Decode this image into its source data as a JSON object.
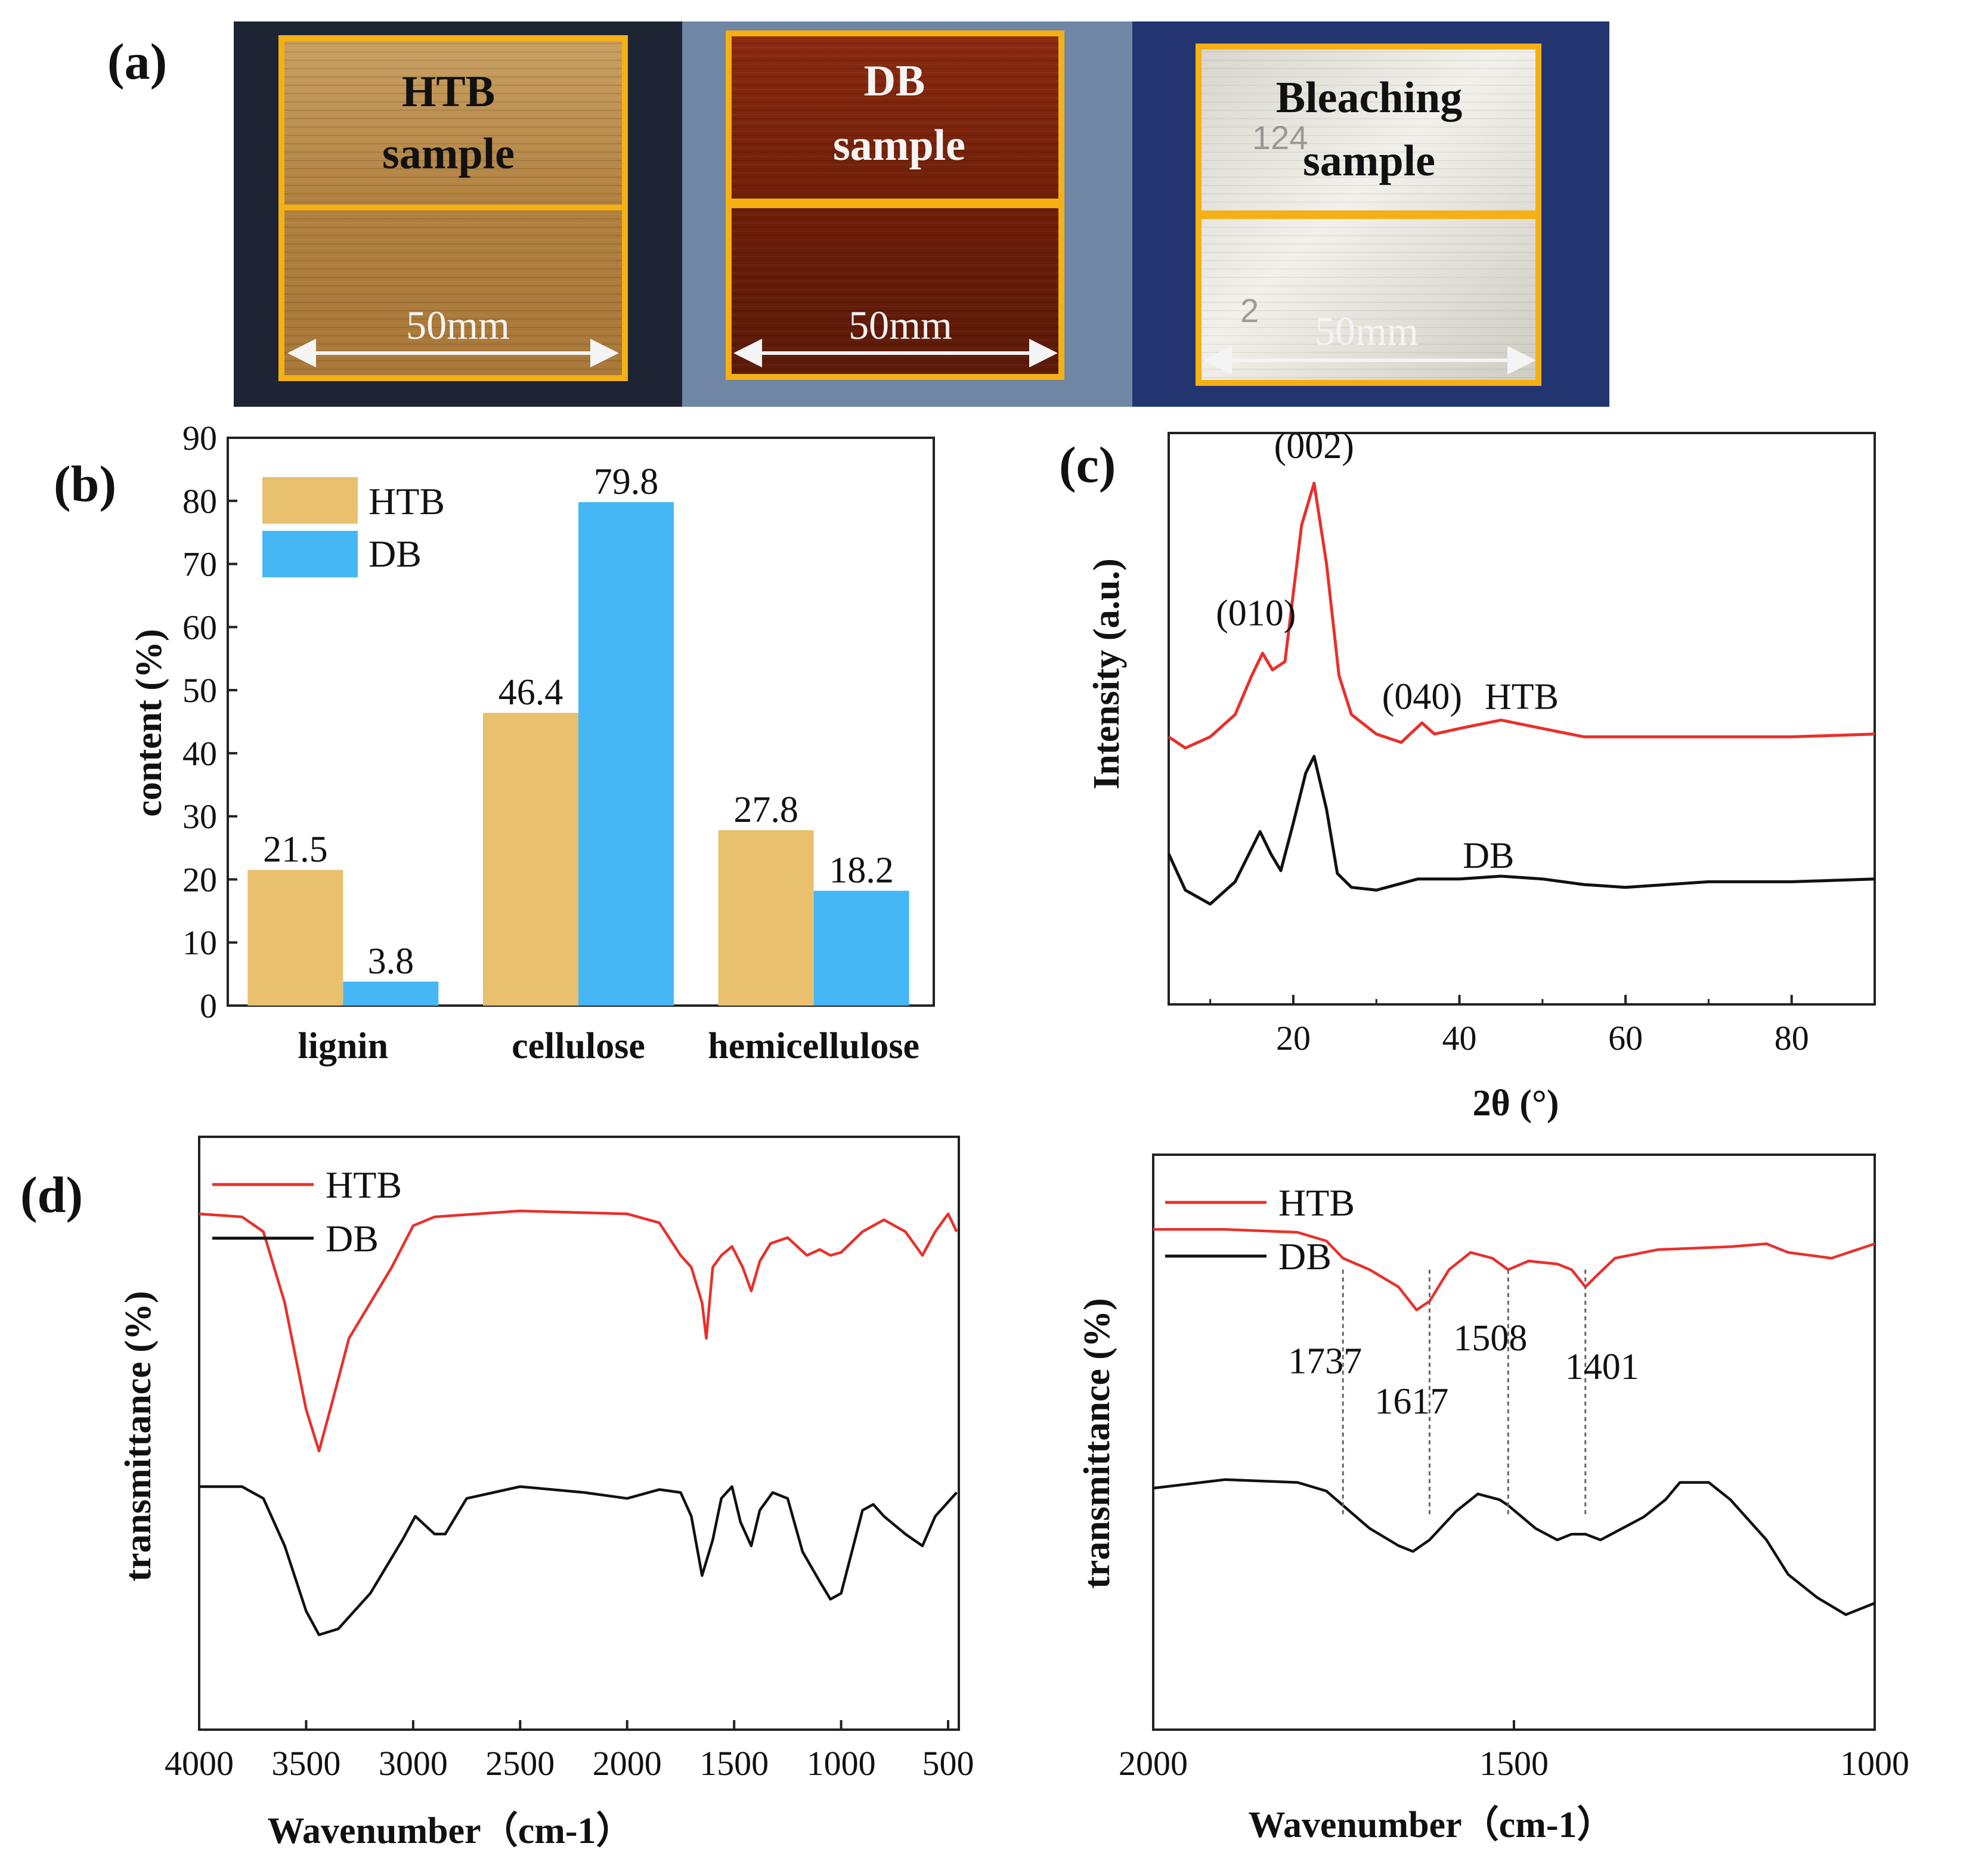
{
  "panel_labels": {
    "a": "(a)",
    "b": "(b)",
    "c": "(c)",
    "d": "(d)"
  },
  "colors": {
    "htb_bar": "#E8C06E",
    "db_bar": "#45B7F5",
    "htb_line": "#E8302B",
    "db_line": "#111111",
    "frame": "#F5B014"
  },
  "photos": {
    "htb": {
      "line1": "HTB",
      "line2": "sample",
      "dimension": "50mm"
    },
    "db": {
      "line1": "DB",
      "line2": "sample",
      "dimension": "50mm"
    },
    "bleach": {
      "line1": "Bleaching",
      "line2": "sample",
      "dimension": "50mm",
      "marks": [
        "124",
        "2"
      ]
    }
  },
  "chart_data": [
    {
      "id": "b",
      "type": "bar",
      "categories": [
        "lignin",
        "cellulose",
        "hemicellulose"
      ],
      "series": [
        {
          "name": "HTB",
          "values": [
            21.5,
            46.4,
            27.8
          ]
        },
        {
          "name": "DB",
          "values": [
            3.8,
            79.8,
            18.2
          ]
        }
      ],
      "value_labels": [
        [
          "21.5",
          "46.4",
          "27.8"
        ],
        [
          "3.8",
          "79.8",
          "18.2"
        ]
      ],
      "ylabel": "content (%)",
      "ylim": [
        0,
        90
      ],
      "yticks": [
        "0",
        "10",
        "20",
        "30",
        "40",
        "50",
        "60",
        "70",
        "80",
        "90"
      ],
      "legend": [
        "HTB",
        "DB"
      ]
    },
    {
      "id": "c",
      "type": "line",
      "title": "",
      "xlabel": "2θ (°)",
      "ylabel": "Intensity (a.u.)",
      "xlim": [
        5,
        90
      ],
      "xticks": [
        "20",
        "40",
        "60",
        "80"
      ],
      "series": [
        {
          "name": "HTB",
          "points": [
            [
              5,
              0.96
            ],
            [
              7,
              0.92
            ],
            [
              10,
              0.96
            ],
            [
              13,
              1.04
            ],
            [
              15,
              1.18
            ],
            [
              16.3,
              1.26
            ],
            [
              17.5,
              1.2
            ],
            [
              19,
              1.23
            ],
            [
              21,
              1.72
            ],
            [
              22.5,
              1.87
            ],
            [
              24,
              1.58
            ],
            [
              25.5,
              1.18
            ],
            [
              27,
              1.04
            ],
            [
              30,
              0.97
            ],
            [
              33,
              0.94
            ],
            [
              35.5,
              1.01
            ],
            [
              37,
              0.97
            ],
            [
              40,
              0.99
            ],
            [
              45,
              1.02
            ],
            [
              50,
              0.99
            ],
            [
              55,
              0.96
            ],
            [
              60,
              0.96
            ],
            [
              70,
              0.96
            ],
            [
              80,
              0.96
            ],
            [
              90,
              0.97
            ]
          ]
        },
        {
          "name": "DB",
          "points": [
            [
              5,
              0.54
            ],
            [
              7,
              0.41
            ],
            [
              10,
              0.36
            ],
            [
              13,
              0.44
            ],
            [
              15,
              0.56
            ],
            [
              16,
              0.62
            ],
            [
              17.3,
              0.54
            ],
            [
              18.5,
              0.48
            ],
            [
              20,
              0.65
            ],
            [
              21.5,
              0.83
            ],
            [
              22.5,
              0.89
            ],
            [
              24,
              0.7
            ],
            [
              25.3,
              0.47
            ],
            [
              27,
              0.42
            ],
            [
              30,
              0.41
            ],
            [
              35,
              0.45
            ],
            [
              40,
              0.45
            ],
            [
              45,
              0.46
            ],
            [
              50,
              0.45
            ],
            [
              55,
              0.43
            ],
            [
              60,
              0.42
            ],
            [
              70,
              0.44
            ],
            [
              80,
              0.44
            ],
            [
              90,
              0.45
            ]
          ]
        }
      ],
      "peak_annotations": [
        "(010)",
        "(002)",
        "(040)"
      ],
      "series_labels": [
        "HTB",
        "DB"
      ]
    },
    {
      "id": "d-left",
      "type": "line",
      "xlabel": "Wavenumber（cm-1）",
      "ylabel": "transmittance (%)",
      "xlim": [
        4000,
        450
      ],
      "xticks": [
        "4000",
        "3500",
        "3000",
        "2500",
        "2000",
        "1500",
        "1000",
        "500"
      ],
      "legend": [
        "HTB",
        "DB"
      ],
      "series": [
        {
          "name": "HTB",
          "points": [
            [
              4000,
              0.87
            ],
            [
              3800,
              0.865
            ],
            [
              3700,
              0.84
            ],
            [
              3600,
              0.72
            ],
            [
              3500,
              0.54
            ],
            [
              3440,
              0.47
            ],
            [
              3380,
              0.55
            ],
            [
              3300,
              0.66
            ],
            [
              3200,
              0.72
            ],
            [
              3100,
              0.78
            ],
            [
              3000,
              0.85
            ],
            [
              2900,
              0.865
            ],
            [
              2500,
              0.875
            ],
            [
              2000,
              0.87
            ],
            [
              1850,
              0.855
            ],
            [
              1750,
              0.8
            ],
            [
              1700,
              0.78
            ],
            [
              1650,
              0.72
            ],
            [
              1630,
              0.66
            ],
            [
              1600,
              0.78
            ],
            [
              1560,
              0.8
            ],
            [
              1510,
              0.815
            ],
            [
              1460,
              0.78
            ],
            [
              1420,
              0.74
            ],
            [
              1380,
              0.79
            ],
            [
              1330,
              0.82
            ],
            [
              1250,
              0.83
            ],
            [
              1160,
              0.8
            ],
            [
              1100,
              0.81
            ],
            [
              1050,
              0.8
            ],
            [
              1000,
              0.805
            ],
            [
              900,
              0.84
            ],
            [
              800,
              0.86
            ],
            [
              700,
              0.84
            ],
            [
              620,
              0.8
            ],
            [
              560,
              0.84
            ],
            [
              500,
              0.87
            ],
            [
              460,
              0.84
            ]
          ]
        },
        {
          "name": "DB",
          "points": [
            [
              4000,
              0.41
            ],
            [
              3800,
              0.41
            ],
            [
              3700,
              0.39
            ],
            [
              3600,
              0.31
            ],
            [
              3500,
              0.2
            ],
            [
              3440,
              0.16
            ],
            [
              3350,
              0.17
            ],
            [
              3200,
              0.23
            ],
            [
              3050,
              0.32
            ],
            [
              2990,
              0.36
            ],
            [
              2900,
              0.33
            ],
            [
              2850,
              0.33
            ],
            [
              2750,
              0.39
            ],
            [
              2500,
              0.41
            ],
            [
              2200,
              0.4
            ],
            [
              2000,
              0.39
            ],
            [
              1850,
              0.405
            ],
            [
              1750,
              0.4
            ],
            [
              1700,
              0.36
            ],
            [
              1650,
              0.26
            ],
            [
              1600,
              0.32
            ],
            [
              1560,
              0.39
            ],
            [
              1510,
              0.41
            ],
            [
              1470,
              0.35
            ],
            [
              1420,
              0.31
            ],
            [
              1380,
              0.37
            ],
            [
              1320,
              0.4
            ],
            [
              1250,
              0.39
            ],
            [
              1180,
              0.3
            ],
            [
              1100,
              0.25
            ],
            [
              1050,
              0.22
            ],
            [
              1000,
              0.23
            ],
            [
              950,
              0.3
            ],
            [
              900,
              0.37
            ],
            [
              850,
              0.38
            ],
            [
              800,
              0.36
            ],
            [
              700,
              0.33
            ],
            [
              620,
              0.31
            ],
            [
              560,
              0.36
            ],
            [
              460,
              0.4
            ]
          ]
        }
      ]
    },
    {
      "id": "d-right",
      "type": "line",
      "xlabel": "Wavenumber（cm-1）",
      "ylabel": "transmittance (%)",
      "xlim": [
        2000,
        1000
      ],
      "xticks": [
        "2000",
        "1500",
        "1000"
      ],
      "legend": [
        "HTB",
        "DB"
      ],
      "markers": [
        {
          "x": 1737,
          "label": "1737"
        },
        {
          "x": 1617,
          "label": "1617"
        },
        {
          "x": 1508,
          "label": "1508"
        },
        {
          "x": 1401,
          "label": "1401"
        }
      ],
      "series": [
        {
          "name": "HTB",
          "points": [
            [
              2000,
              0.87
            ],
            [
              1900,
              0.87
            ],
            [
              1800,
              0.865
            ],
            [
              1760,
              0.85
            ],
            [
              1737,
              0.82
            ],
            [
              1700,
              0.8
            ],
            [
              1660,
              0.77
            ],
            [
              1635,
              0.73
            ],
            [
              1617,
              0.745
            ],
            [
              1590,
              0.8
            ],
            [
              1560,
              0.83
            ],
            [
              1530,
              0.82
            ],
            [
              1508,
              0.8
            ],
            [
              1480,
              0.815
            ],
            [
              1440,
              0.81
            ],
            [
              1420,
              0.8
            ],
            [
              1401,
              0.77
            ],
            [
              1385,
              0.79
            ],
            [
              1360,
              0.82
            ],
            [
              1300,
              0.835
            ],
            [
              1200,
              0.84
            ],
            [
              1150,
              0.845
            ],
            [
              1120,
              0.83
            ],
            [
              1060,
              0.82
            ],
            [
              1000,
              0.845
            ]
          ]
        },
        {
          "name": "DB",
          "points": [
            [
              2000,
              0.42
            ],
            [
              1900,
              0.435
            ],
            [
              1800,
              0.43
            ],
            [
              1760,
              0.415
            ],
            [
              1737,
              0.39
            ],
            [
              1700,
              0.35
            ],
            [
              1660,
              0.32
            ],
            [
              1640,
              0.31
            ],
            [
              1617,
              0.33
            ],
            [
              1580,
              0.38
            ],
            [
              1550,
              0.41
            ],
            [
              1520,
              0.4
            ],
            [
              1508,
              0.39
            ],
            [
              1470,
              0.35
            ],
            [
              1440,
              0.33
            ],
            [
              1420,
              0.34
            ],
            [
              1401,
              0.34
            ],
            [
              1380,
              0.33
            ],
            [
              1350,
              0.35
            ],
            [
              1320,
              0.37
            ],
            [
              1290,
              0.4
            ],
            [
              1270,
              0.43
            ],
            [
              1230,
              0.43
            ],
            [
              1200,
              0.4
            ],
            [
              1150,
              0.33
            ],
            [
              1120,
              0.27
            ],
            [
              1080,
              0.23
            ],
            [
              1040,
              0.2
            ],
            [
              1000,
              0.22
            ]
          ]
        }
      ]
    }
  ]
}
